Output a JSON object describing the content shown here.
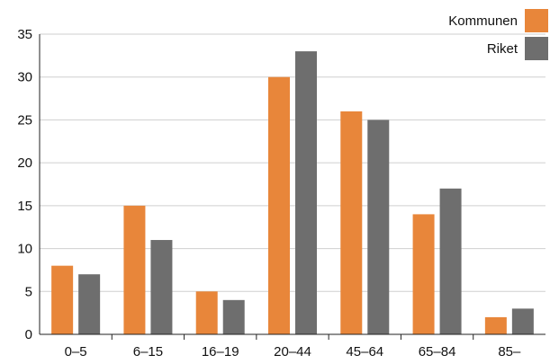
{
  "chart_data": {
    "type": "bar",
    "categories": [
      "0–5",
      "6–15",
      "16–19",
      "20–44",
      "45–64",
      "65–84",
      "85–"
    ],
    "series": [
      {
        "name": "Kommunen",
        "color": "#e8863a",
        "values": [
          8,
          15,
          5,
          30,
          26,
          14,
          2
        ]
      },
      {
        "name": "Riket",
        "color": "#6e6e6e",
        "values": [
          7,
          11,
          4,
          33,
          25,
          17,
          3
        ]
      }
    ],
    "yticks": [
      0,
      5,
      10,
      15,
      20,
      25,
      30,
      35
    ],
    "ylim": [
      0,
      35
    ],
    "grid": true,
    "legend_position": "top-right",
    "title": "",
    "xlabel": "",
    "ylabel": ""
  }
}
